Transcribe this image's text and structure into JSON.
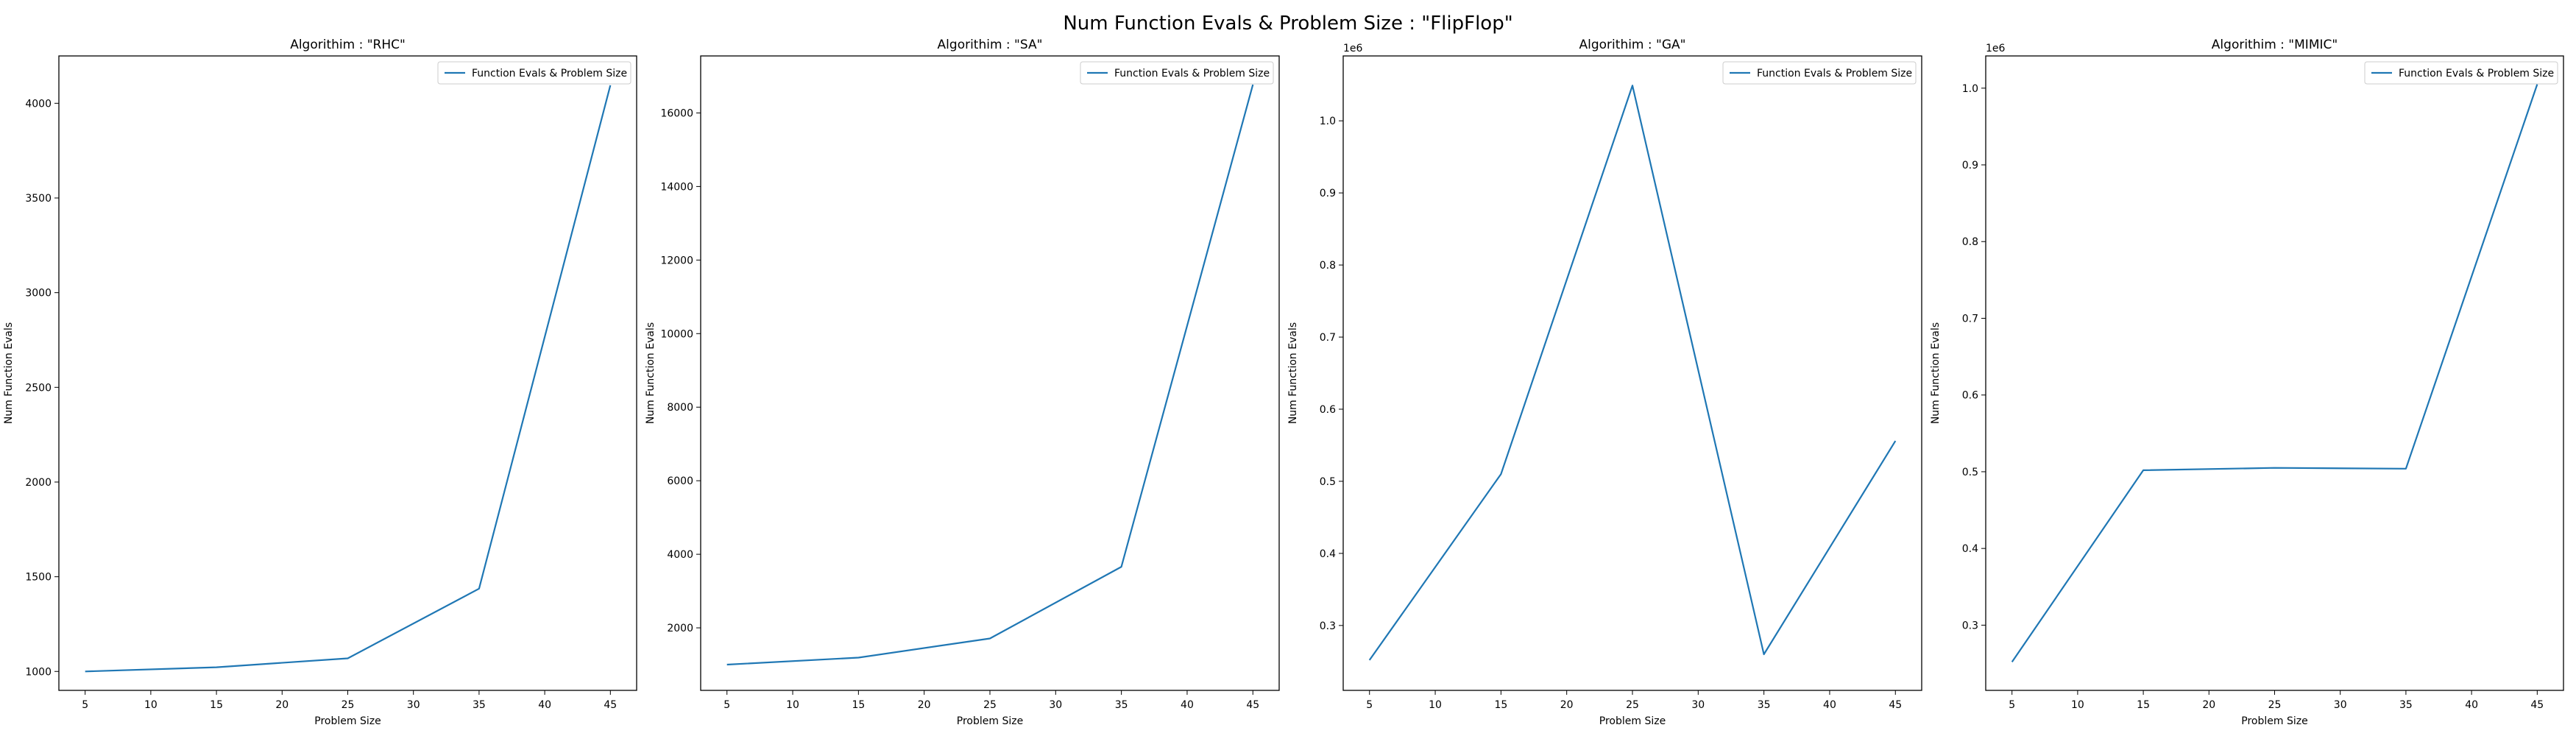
{
  "figure": {
    "suptitle": "Num Function Evals & Problem Size : \"FlipFlop\""
  },
  "colors": {
    "line": "#1f77b4",
    "axes": "#000000",
    "legend_border": "#cccccc",
    "background": "#ffffff"
  },
  "chart_data": [
    {
      "type": "line",
      "title": "Algorithim : \"RHC\"",
      "xlabel": "Problem Size",
      "ylabel": "Num Function Evals",
      "y_offset_label": "",
      "x": [
        5,
        15,
        25,
        35,
        45
      ],
      "series": [
        {
          "name": "Function Evals & Problem Size",
          "values": [
            1000,
            1022,
            1069,
            1437,
            4095
          ]
        }
      ],
      "xlim": [
        3,
        47
      ],
      "ylim": [
        900,
        4250
      ],
      "xticks": [
        5,
        10,
        15,
        20,
        25,
        30,
        35,
        40,
        45
      ],
      "yticks": [
        1000,
        1500,
        2000,
        2500,
        3000,
        3500,
        4000
      ],
      "ytick_labels": [
        "1000",
        "1500",
        "2000",
        "2500",
        "3000",
        "3500",
        "4000"
      ],
      "grid": false,
      "legend": "top-right"
    },
    {
      "type": "line",
      "title": "Algorithim : \"SA\"",
      "xlabel": "Problem Size",
      "ylabel": "Num Function Evals",
      "y_offset_label": "",
      "x": [
        5,
        15,
        25,
        35,
        45
      ],
      "series": [
        {
          "name": "Function Evals & Problem Size",
          "values": [
            1000,
            1190,
            1710,
            3660,
            16770
          ]
        }
      ],
      "xlim": [
        3,
        47
      ],
      "ylim": [
        300,
        17550
      ],
      "xticks": [
        5,
        10,
        15,
        20,
        25,
        30,
        35,
        40,
        45
      ],
      "yticks": [
        2000,
        4000,
        6000,
        8000,
        10000,
        12000,
        14000,
        16000
      ],
      "ytick_labels": [
        "2000",
        "4000",
        "6000",
        "8000",
        "10000",
        "12000",
        "14000",
        "16000"
      ],
      "grid": false,
      "legend": "top-right"
    },
    {
      "type": "line",
      "title": "Algorithim : \"GA\"",
      "xlabel": "Problem Size",
      "ylabel": "Num Function Evals",
      "y_offset_label": "1e6",
      "x": [
        5,
        15,
        25,
        35,
        45
      ],
      "series": [
        {
          "name": "Function Evals & Problem Size",
          "values": [
            252000,
            510000,
            1049000,
            260000,
            556000
          ]
        }
      ],
      "xlim": [
        3,
        47
      ],
      "ylim": [
        210000,
        1090000
      ],
      "xticks": [
        5,
        10,
        15,
        20,
        25,
        30,
        35,
        40,
        45
      ],
      "yticks": [
        300000,
        400000,
        500000,
        600000,
        700000,
        800000,
        900000,
        1000000
      ],
      "ytick_labels": [
        "0.3",
        "0.4",
        "0.5",
        "0.6",
        "0.7",
        "0.8",
        "0.9",
        "1.0"
      ],
      "grid": false,
      "legend": "top-right"
    },
    {
      "type": "line",
      "title": "Algorithim : \"MIMIC\"",
      "xlabel": "Problem Size",
      "ylabel": "Num Function Evals",
      "y_offset_label": "1e6",
      "x": [
        5,
        15,
        25,
        35,
        45
      ],
      "series": [
        {
          "name": "Function Evals & Problem Size",
          "values": [
            252000,
            502000,
            505000,
            504000,
            1005000
          ]
        }
      ],
      "xlim": [
        3,
        47
      ],
      "ylim": [
        215000,
        1042000
      ],
      "xticks": [
        5,
        10,
        15,
        20,
        25,
        30,
        35,
        40,
        45
      ],
      "yticks": [
        300000,
        400000,
        500000,
        600000,
        700000,
        800000,
        900000,
        1000000
      ],
      "ytick_labels": [
        "0.3",
        "0.4",
        "0.5",
        "0.6",
        "0.7",
        "0.8",
        "0.9",
        "1.0"
      ],
      "grid": false,
      "legend": "top-right"
    }
  ]
}
